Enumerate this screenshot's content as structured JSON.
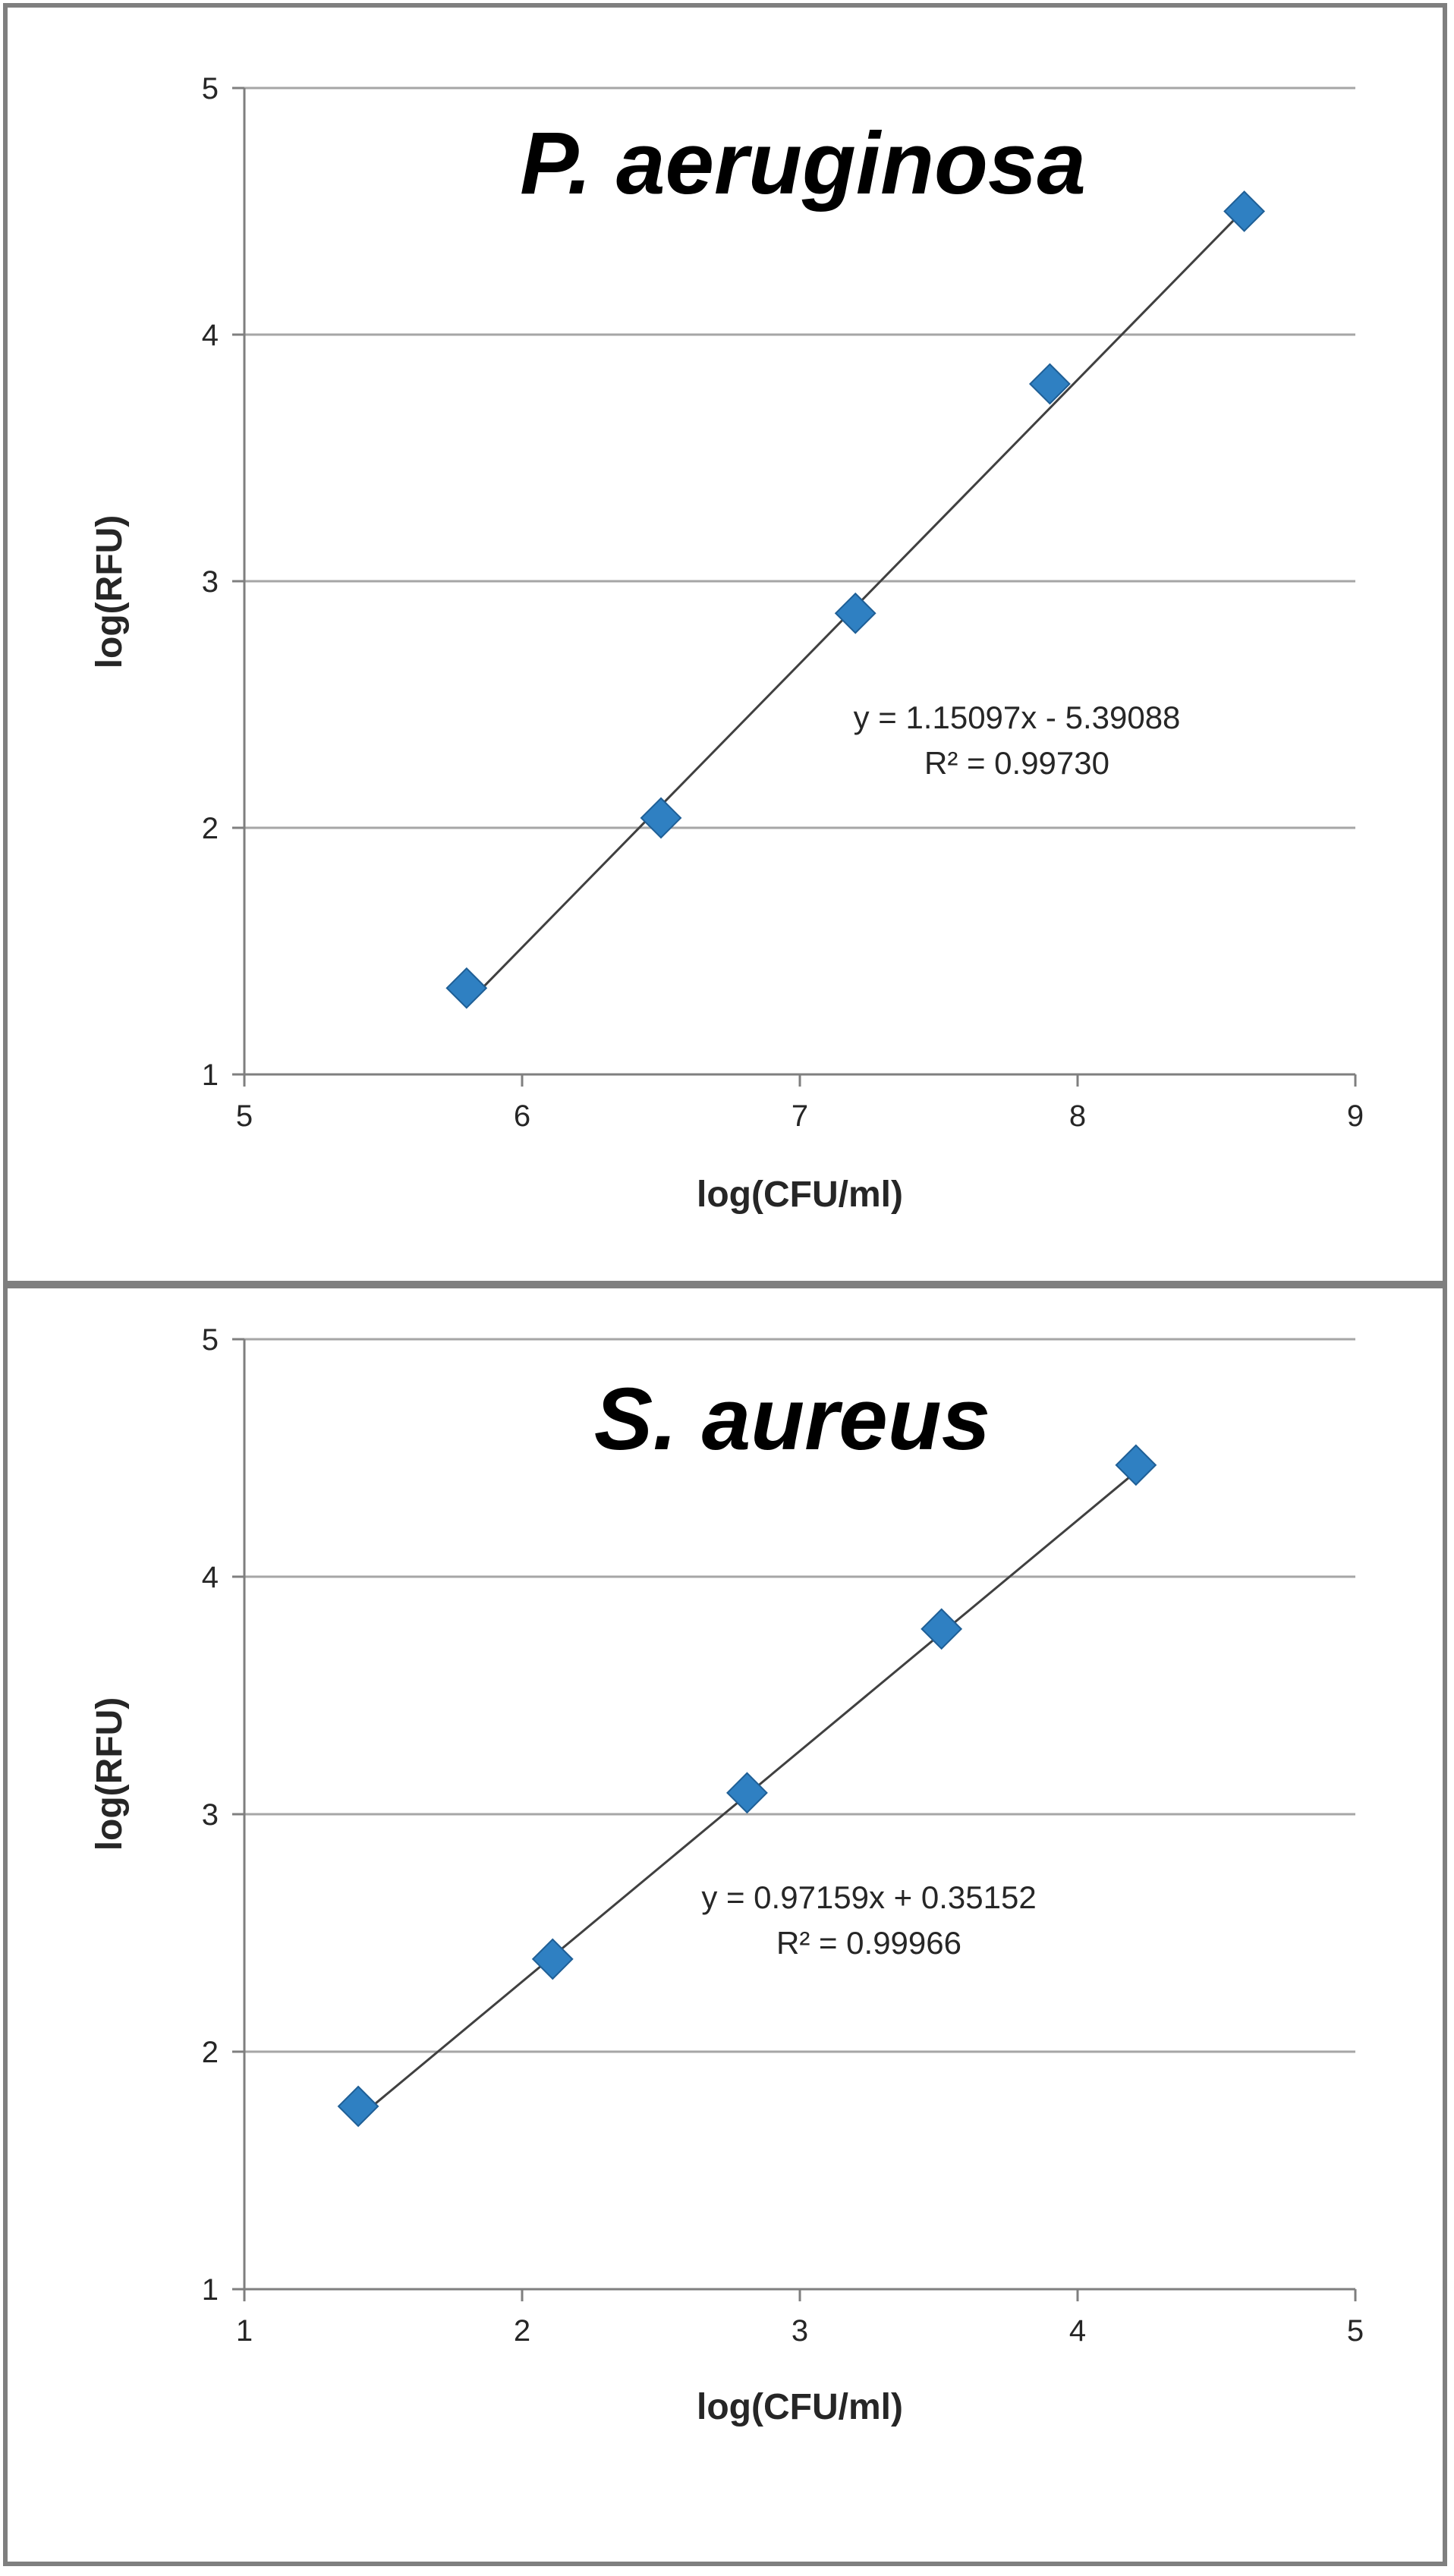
{
  "colors": {
    "marker": "#2f80c2",
    "marker_edge": "#1f5f96",
    "trendline": "#404040",
    "gridline": "#a6a6a6",
    "axis": "#7f7f7f",
    "border": "#7f7f7f"
  },
  "chart_data": [
    {
      "type": "scatter",
      "title": "P. aeruginosa",
      "xlabel": "log(CFU/ml)",
      "ylabel": "log(RFU)",
      "xlim": [
        5,
        9
      ],
      "ylim": [
        1,
        5
      ],
      "xticks": [
        5,
        6,
        7,
        8,
        9
      ],
      "yticks": [
        1,
        2,
        3,
        4,
        5
      ],
      "grid": "horizontal",
      "marker": "diamond",
      "points": [
        {
          "x": 5.8,
          "y": 1.35
        },
        {
          "x": 6.5,
          "y": 2.04
        },
        {
          "x": 7.2,
          "y": 2.87
        },
        {
          "x": 7.9,
          "y": 3.8
        },
        {
          "x": 8.6,
          "y": 4.5
        }
      ],
      "trendline": {
        "type": "linear",
        "slope": 1.15097,
        "intercept": -5.39088,
        "x_range": [
          5.8,
          8.6
        ],
        "equation": "y = 1.15097x - 5.39088",
        "r2": "R² = 0.99730"
      }
    },
    {
      "type": "scatter",
      "title": "S. aureus",
      "xlabel": "log(CFU/ml)",
      "ylabel": "log(RFU)",
      "xlim": [
        1,
        5
      ],
      "ylim": [
        1,
        5
      ],
      "xticks": [
        1,
        2,
        3,
        4,
        5
      ],
      "yticks": [
        1,
        2,
        3,
        4,
        5
      ],
      "grid": "horizontal",
      "marker": "diamond",
      "points": [
        {
          "x": 1.41,
          "y": 1.77
        },
        {
          "x": 2.11,
          "y": 2.39
        },
        {
          "x": 2.81,
          "y": 3.09
        },
        {
          "x": 3.51,
          "y": 3.78
        },
        {
          "x": 4.21,
          "y": 4.47
        }
      ],
      "trendline": {
        "type": "linear",
        "slope": 0.97159,
        "intercept": 0.35152,
        "x_range": [
          1.41,
          4.21
        ],
        "equation": "y = 0.97159x + 0.35152",
        "r2": "R² = 0.99966"
      }
    }
  ]
}
